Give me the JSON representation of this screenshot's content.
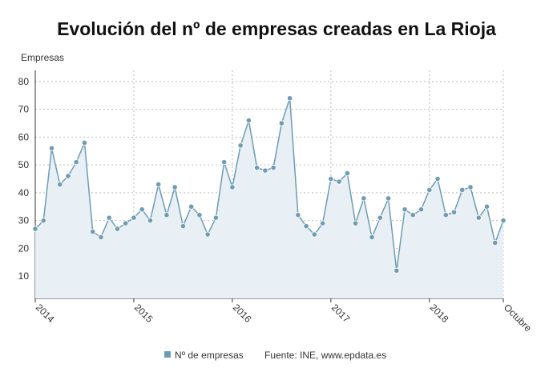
{
  "chart_data": {
    "type": "line",
    "title": "Evolución del nº de empresas creadas en La Rioja",
    "y_label": "Empresas",
    "source": "Fuente: INE, www.epdata.es",
    "categories": [
      "2014",
      null,
      null,
      null,
      null,
      null,
      null,
      null,
      null,
      null,
      null,
      null,
      "2015",
      null,
      null,
      null,
      null,
      null,
      null,
      null,
      null,
      null,
      null,
      null,
      "2016",
      null,
      null,
      null,
      null,
      null,
      null,
      null,
      null,
      null,
      null,
      null,
      "2017",
      null,
      null,
      null,
      null,
      null,
      null,
      null,
      null,
      null,
      null,
      null,
      "2018",
      null,
      null,
      null,
      null,
      null,
      null,
      null,
      null,
      "Octubre"
    ],
    "series": [
      {
        "name": "Nº de empresas",
        "color": "#6e9cb3",
        "values": [
          27,
          30,
          56,
          43,
          46,
          51,
          58,
          26,
          24,
          31,
          27,
          29,
          31,
          34,
          30,
          43,
          32,
          42,
          28,
          35,
          32,
          25,
          31,
          51,
          42,
          57,
          66,
          49,
          48,
          49,
          65,
          74,
          32,
          28,
          25,
          29,
          45,
          44,
          47,
          29,
          38,
          24,
          31,
          38,
          12,
          34,
          32,
          34,
          41,
          45,
          32,
          33,
          41,
          42,
          31,
          35,
          22,
          30
        ]
      }
    ],
    "ylim": [
      2,
      84
    ],
    "yticks": [
      10,
      20,
      30,
      40,
      50,
      60,
      70,
      80
    ],
    "grid": true
  }
}
